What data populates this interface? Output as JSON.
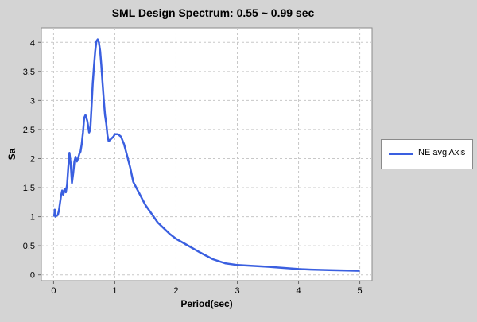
{
  "chart_data": {
    "type": "line",
    "title": "SML Design Spectrum: 0.55 ~ 0.99 sec",
    "xlabel": "Period(sec)",
    "ylabel": "Sa",
    "xlim": [
      -0.2,
      5.2
    ],
    "ylim": [
      -0.1,
      4.25
    ],
    "xticks": [
      0,
      1,
      2,
      3,
      4,
      5
    ],
    "xtick_labels": [
      "0",
      "1",
      "2",
      "3",
      "4",
      "5"
    ],
    "yticks": [
      0,
      0.5,
      1,
      1.5,
      2,
      2.5,
      3,
      3.5,
      4
    ],
    "ytick_labels": [
      "0",
      "0.5",
      "1",
      "1.5",
      "2",
      "2.5",
      "3",
      "3.5",
      "4"
    ],
    "grid": true,
    "legend_position": "right",
    "series": [
      {
        "name": "NE avg Axis",
        "color": "#3a5fe0",
        "x": [
          0.01,
          0.02,
          0.03,
          0.05,
          0.07,
          0.09,
          0.1,
          0.12,
          0.14,
          0.16,
          0.18,
          0.2,
          0.22,
          0.24,
          0.26,
          0.28,
          0.3,
          0.32,
          0.34,
          0.36,
          0.38,
          0.4,
          0.42,
          0.44,
          0.46,
          0.48,
          0.5,
          0.52,
          0.55,
          0.58,
          0.6,
          0.62,
          0.64,
          0.66,
          0.68,
          0.7,
          0.72,
          0.74,
          0.76,
          0.78,
          0.8,
          0.82,
          0.84,
          0.86,
          0.88,
          0.9,
          0.92,
          0.95,
          0.98,
          1.0,
          1.05,
          1.1,
          1.15,
          1.2,
          1.25,
          1.3,
          1.35,
          1.4,
          1.45,
          1.5,
          1.6,
          1.7,
          1.8,
          1.9,
          2.0,
          2.2,
          2.4,
          2.6,
          2.8,
          3.0,
          3.5,
          4.0,
          4.2,
          4.5,
          5.0
        ],
        "y": [
          1.0,
          1.12,
          1.0,
          1.02,
          1.03,
          1.12,
          1.2,
          1.35,
          1.45,
          1.38,
          1.48,
          1.42,
          1.55,
          1.85,
          2.1,
          1.9,
          1.58,
          1.75,
          1.95,
          2.03,
          1.95,
          2.0,
          2.08,
          2.12,
          2.25,
          2.45,
          2.7,
          2.75,
          2.65,
          2.45,
          2.5,
          2.9,
          3.3,
          3.6,
          3.85,
          4.02,
          4.05,
          4.0,
          3.85,
          3.6,
          3.3,
          3.0,
          2.75,
          2.6,
          2.4,
          2.3,
          2.32,
          2.35,
          2.38,
          2.42,
          2.42,
          2.38,
          2.25,
          2.05,
          1.85,
          1.6,
          1.5,
          1.4,
          1.3,
          1.2,
          1.05,
          0.9,
          0.8,
          0.7,
          0.62,
          0.5,
          0.38,
          0.27,
          0.2,
          0.17,
          0.14,
          0.1,
          0.09,
          0.08,
          0.07
        ]
      }
    ]
  }
}
